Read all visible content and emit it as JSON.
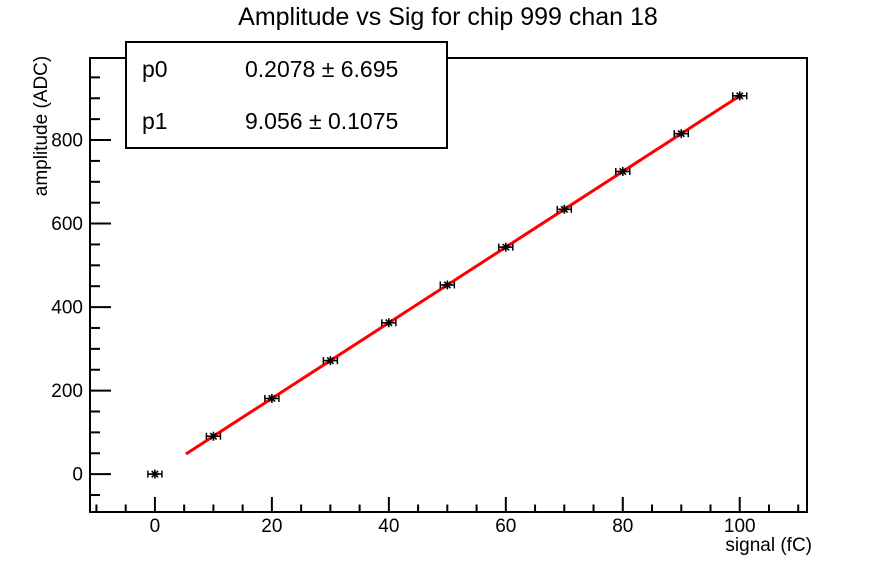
{
  "title": "Amplitude vs Sig for chip 999 chan 18",
  "stats_box": {
    "rows": [
      {
        "name": "p0",
        "value": "0.2078 ± 6.695"
      },
      {
        "name": "p1",
        "value": "9.056 ± 0.1075"
      }
    ]
  },
  "chart_data": {
    "type": "scatter",
    "title": "Amplitude vs Sig for chip 999 chan 18",
    "xlabel": "signal (fC)",
    "ylabel": "amplitude (ADC)",
    "xlim": [
      -11.1,
      111.5
    ],
    "ylim": [
      -90.6,
      996.4
    ],
    "x": [
      0,
      10,
      20,
      30,
      40,
      50,
      60,
      70,
      80,
      90,
      100
    ],
    "y": [
      0.2,
      90.8,
      181.3,
      271.9,
      362.4,
      453.0,
      543.6,
      634.1,
      724.7,
      815.2,
      905.8
    ],
    "xerr": 1.2,
    "x_major_ticks": [
      0,
      20,
      40,
      60,
      80,
      100
    ],
    "x_minor_step": 5,
    "y_major_ticks": [
      0,
      200,
      400,
      600,
      800
    ],
    "y_minor_step": 50,
    "marker": "asterisk",
    "marker_color": "#000000",
    "axis_color": "#000000",
    "grid": false,
    "fit": {
      "type": "linear",
      "p0": 0.2078,
      "p1": 9.056,
      "x_range": [
        5.3,
        100
      ],
      "color": "#ff0000"
    },
    "legend_position": "stats box, top-left"
  }
}
